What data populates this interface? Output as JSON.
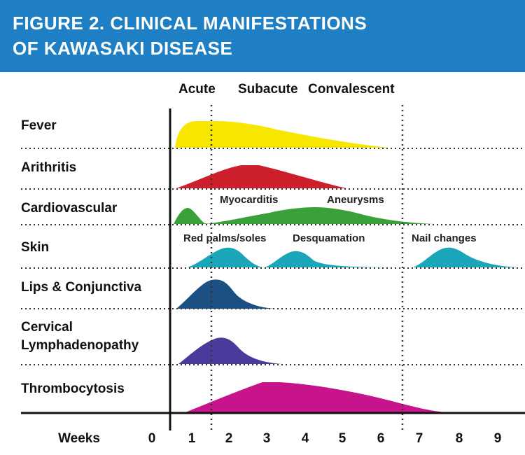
{
  "title": {
    "line1": "FIGURE 2. CLINICAL MANIFESTATIONS",
    "line2": "OF KAWASAKI DISEASE"
  },
  "phases": [
    "Acute",
    "Subacute",
    "Convalescent"
  ],
  "rows": [
    {
      "label": "Fever",
      "color": "#f7e600"
    },
    {
      "label": "Arithritis",
      "color": "#cc1f2b"
    },
    {
      "label": "Cardiovascular",
      "color": "#3aa03a"
    },
    {
      "label": "Skin",
      "color": "#1aa6b8"
    },
    {
      "label": "Lips & Conjunctiva",
      "color": "#1c4f82"
    },
    {
      "label_line1": "Cervical",
      "label_line2": "Lymphadenopathy",
      "color": "#4b3a9c"
    },
    {
      "label": "Thrombocytosis",
      "color": "#c7148a"
    }
  ],
  "annotations": {
    "myocarditis": "Myocarditis",
    "aneurysms": "Aneurysms",
    "red_palms": "Red palms/soles",
    "desquamation": "Desquamation",
    "nail_changes": "Nail changes"
  },
  "weeks_label": "Weeks",
  "week_ticks": [
    "0",
    "1",
    "2",
    "3",
    "4",
    "5",
    "6",
    "7",
    "8",
    "9"
  ],
  "colors": {
    "header_bg": "#1f7fc4",
    "title_text": "#ffffff"
  }
}
